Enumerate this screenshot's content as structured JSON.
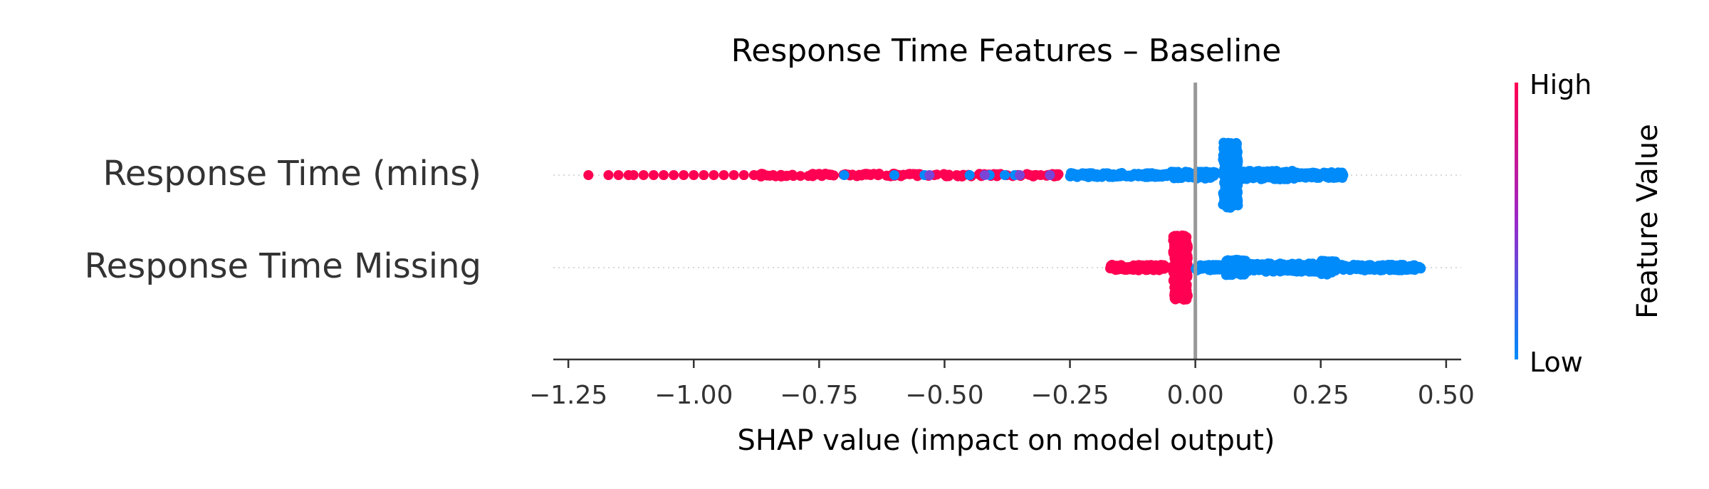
{
  "chart_data": {
    "type": "scatter",
    "subtype": "shap-beeswarm",
    "title": "Response Time Features – Baseline",
    "xlabel": "SHAP value (impact on model output)",
    "ylabel": "",
    "xlim": [
      -1.28,
      0.53
    ],
    "x_ticks": [
      -1.25,
      -1.0,
      -0.75,
      -0.5,
      -0.25,
      0.0,
      0.25,
      0.5
    ],
    "x_tick_labels": [
      "−1.25",
      "−1.00",
      "−0.75",
      "−0.50",
      "−0.25",
      "0.00",
      "0.25",
      "0.50"
    ],
    "features": [
      {
        "name": "Response Time (mins)",
        "min_shap": -1.21,
        "max_shap": 0.3,
        "dense_center": 0.07,
        "high_value_range": [
          -1.21,
          -0.27
        ],
        "low_value_range": [
          -0.7,
          0.3
        ]
      },
      {
        "name": "Response Time Missing",
        "min_shap": -0.17,
        "max_shap": 0.45,
        "dense_center_high": -0.03,
        "dense_center_low": 0.08,
        "high_value_range": [
          -0.17,
          -0.01
        ],
        "low_value_range": [
          0.0,
          0.45
        ]
      }
    ],
    "colorbar": {
      "label": "Feature Value",
      "high_label": "High",
      "low_label": "Low",
      "high_color": "#ff0052",
      "low_color": "#008bfb"
    },
    "grid": false,
    "zero_line": true
  }
}
